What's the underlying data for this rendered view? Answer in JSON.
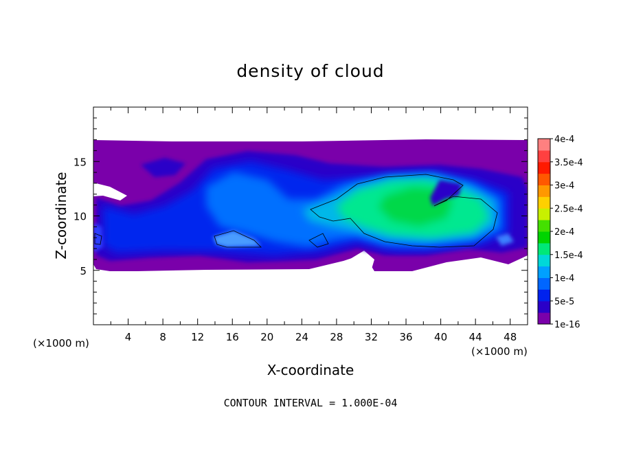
{
  "chart_data": {
    "type": "heatmap",
    "title": "density of cloud",
    "xlabel": "X-coordinate",
    "ylabel": "Z-coordinate",
    "x_unit_left": "(×1000 m)",
    "x_unit_right": "(×1000 m)",
    "xlim": [
      0,
      50
    ],
    "ylim": [
      0,
      20
    ],
    "x_ticks": [
      "4",
      "8",
      "12",
      "16",
      "20",
      "24",
      "28",
      "32",
      "36",
      "40",
      "44",
      "48"
    ],
    "x_tick_values": [
      4,
      8,
      12,
      16,
      20,
      24,
      28,
      32,
      36,
      40,
      44,
      48
    ],
    "y_ticks": [
      "5",
      "10",
      "15"
    ],
    "y_tick_values": [
      5,
      10,
      15
    ],
    "colorbar": {
      "labels": [
        "1e-16",
        "5e-5",
        "1e-4",
        "1.5e-4",
        "2e-4",
        "2.5e-4",
        "3e-4",
        "3.5e-4",
        "4e-4"
      ],
      "levels": [
        1e-16,
        5e-05,
        0.0001,
        0.00015,
        0.0002,
        0.00025,
        0.0003,
        0.00035,
        0.0004
      ],
      "colors": [
        "#7a00aa",
        "#2a00c8",
        "#0022ee",
        "#0066ff",
        "#00a0ff",
        "#00d8d8",
        "#00e878",
        "#00d400",
        "#44e000",
        "#c8f000",
        "#ffd000",
        "#ff9800",
        "#ff5800",
        "#ff1a00",
        "#ff4040",
        "#ff8080"
      ]
    },
    "regions": [
      {
        "level": "1e-16",
        "x": [
          0,
          50
        ],
        "z": [
          5.2,
          16.9
        ]
      },
      {
        "level": "5e-5",
        "x": [
          13,
          46
        ],
        "z": [
          6.5,
          15.5
        ]
      },
      {
        "level": "1e-4",
        "x": [
          25,
          46
        ],
        "z": [
          6.8,
          13.5
        ]
      },
      {
        "level": "1.5e-4",
        "x": [
          27,
          45
        ],
        "z": [
          7.2,
          13.2
        ]
      },
      {
        "level": "2e-4",
        "x": [
          32,
          42
        ],
        "z": [
          8.5,
          12.5
        ]
      }
    ],
    "footer": "CONTOUR INTERVAL = 1.000E-04"
  }
}
